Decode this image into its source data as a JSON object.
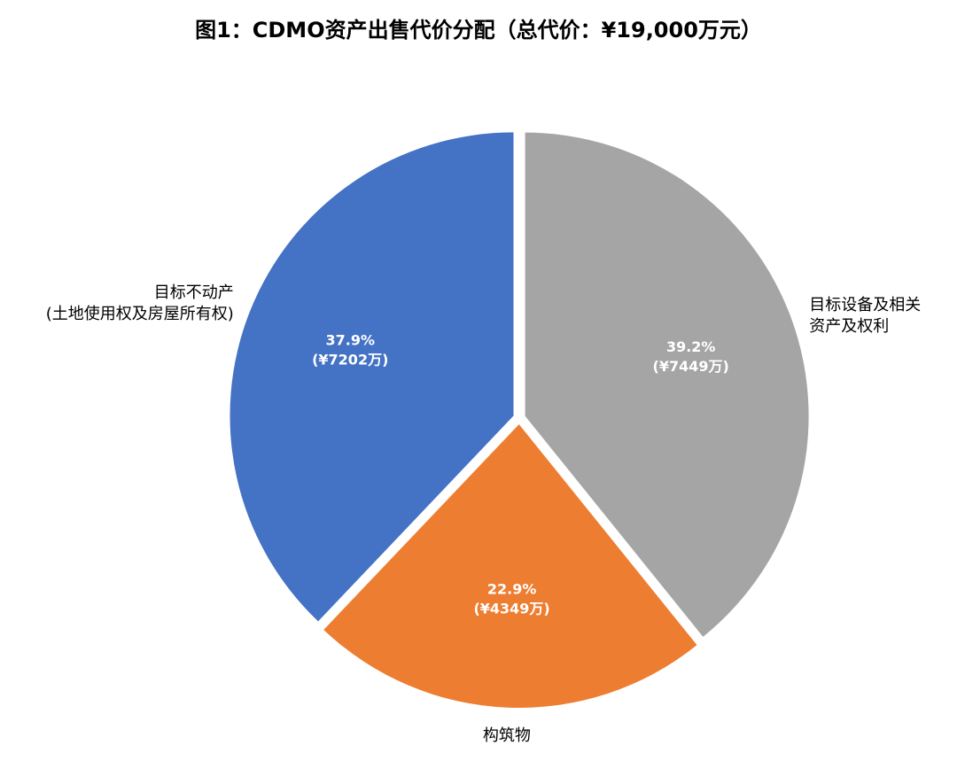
{
  "chart_data": {
    "type": "pie",
    "title": "图1：CDMO资产出售代价分配（总代价：¥19,000万元）",
    "categories": [
      "目标不动产\n(土地使用权及房屋所有权)",
      "构筑物",
      "目标设备及相关\n资产及权利"
    ],
    "values": [
      7202,
      4349,
      7449
    ],
    "value_labels": [
      [
        "37.9%",
        "(¥7202万)"
      ],
      [
        "22.9%",
        "(¥4349万)"
      ],
      [
        "39.2%",
        "(¥7449万)"
      ]
    ],
    "colors": [
      "#4472c4",
      "#ed7d31",
      "#a5a5a5"
    ]
  }
}
